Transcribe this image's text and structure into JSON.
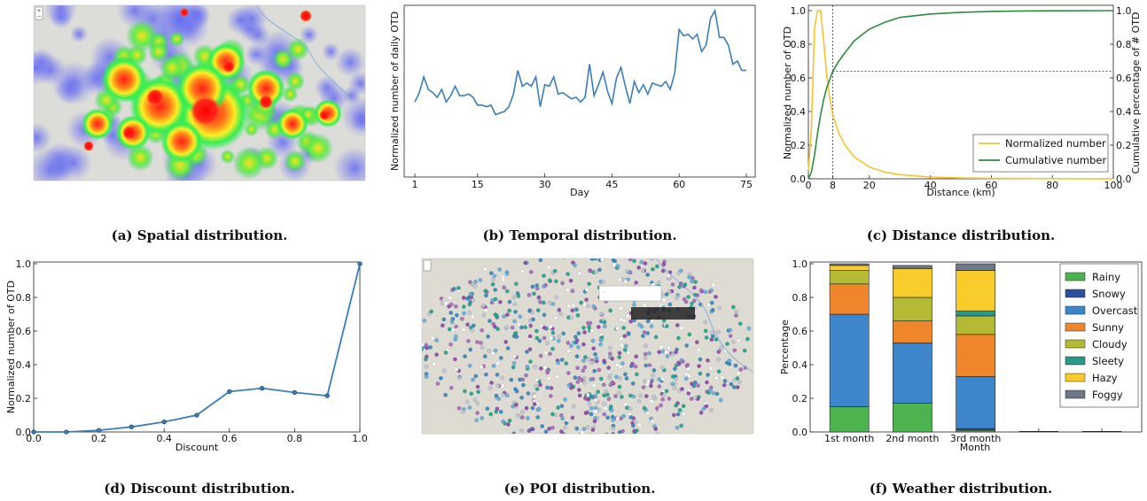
{
  "figure": {
    "captions": {
      "a": "(a) Spatial distribution.",
      "b": "(b) Temporal distribution.",
      "c": "(c) Distance distribution.",
      "d": "(d) Discount distribution.",
      "e": "(e) POI distribution.",
      "f": "(f) Weather distribution."
    }
  },
  "maps": {
    "spatial": {
      "type": "heatmap-map",
      "colors": [
        "#2233ff",
        "#22ee55",
        "#ffee22",
        "#ff2222"
      ]
    },
    "poi": {
      "type": "marker-map",
      "popup_text": "...",
      "colors": [
        "#2e86c1",
        "#17a589",
        "#8e44ad",
        "#ffffff"
      ]
    }
  },
  "chart_data": [
    {
      "id": "temporal",
      "type": "line",
      "ylabel": "Normalized number of daily OTD",
      "xlabel": "Day",
      "xlim": [
        1,
        75
      ],
      "xticks": [
        1,
        15,
        30,
        45,
        60,
        75
      ],
      "ylim": [
        0,
        1
      ],
      "color": "#3b7dbb",
      "x": [
        1,
        2,
        3,
        4,
        5,
        6,
        7,
        8,
        9,
        10,
        11,
        12,
        13,
        14,
        15,
        16,
        17,
        18,
        19,
        20,
        21,
        22,
        23,
        24,
        25,
        26,
        27,
        28,
        29,
        30,
        31,
        32,
        33,
        34,
        35,
        36,
        37,
        38,
        39,
        40,
        41,
        42,
        43,
        44,
        45,
        46,
        47,
        48,
        49,
        50,
        51,
        52,
        53,
        54,
        55,
        56,
        57,
        58,
        59,
        60,
        61,
        62,
        63,
        64,
        65,
        66,
        67,
        68,
        69,
        70,
        71,
        72,
        73,
        74,
        75
      ],
      "values": [
        0.42,
        0.48,
        0.58,
        0.5,
        0.48,
        0.45,
        0.5,
        0.42,
        0.46,
        0.52,
        0.46,
        0.46,
        0.47,
        0.45,
        0.4,
        0.4,
        0.39,
        0.4,
        0.34,
        0.35,
        0.36,
        0.39,
        0.47,
        0.62,
        0.52,
        0.54,
        0.52,
        0.58,
        0.39,
        0.53,
        0.52,
        0.58,
        0.47,
        0.48,
        0.46,
        0.44,
        0.45,
        0.42,
        0.45,
        0.66,
        0.46,
        0.53,
        0.61,
        0.49,
        0.41,
        0.57,
        0.64,
        0.52,
        0.41,
        0.55,
        0.48,
        0.53,
        0.47,
        0.54,
        0.53,
        0.52,
        0.55,
        0.5,
        0.6,
        0.88,
        0.84,
        0.85,
        0.82,
        0.85,
        0.74,
        0.78,
        0.95,
        1.0,
        0.83,
        0.83,
        0.78,
        0.66,
        0.68,
        0.62,
        0.62
      ]
    },
    {
      "id": "distance",
      "type": "line",
      "xlabel": "Distance (km)",
      "ylabel": "Normalized number of OTD",
      "ylabel_right": "Cumulative percentage of # OTD",
      "xlim": [
        0,
        100
      ],
      "xticks": [
        0,
        8,
        20,
        40,
        60,
        80,
        100
      ],
      "ylim": [
        0,
        1
      ],
      "yticks": [
        0,
        0.2,
        0.4,
        0.6,
        0.8,
        1.0
      ],
      "reference": {
        "x": 8,
        "y": 0.64
      },
      "legend_position": "lower-right",
      "series": [
        {
          "name": "Normalized number",
          "color": "#f7c22b",
          "x": [
            0,
            1,
            2,
            3,
            4,
            5,
            6,
            7,
            8,
            10,
            12,
            15,
            20,
            25,
            30,
            40,
            50,
            60,
            70,
            80,
            100
          ],
          "values": [
            0.05,
            0.3,
            0.9,
            1.0,
            1.0,
            0.82,
            0.62,
            0.48,
            0.38,
            0.27,
            0.2,
            0.13,
            0.07,
            0.04,
            0.025,
            0.01,
            0.005,
            0.003,
            0.002,
            0.001,
            0.0
          ]
        },
        {
          "name": "Cumulative number",
          "color": "#2e8b3e",
          "x": [
            0,
            1,
            2,
            3,
            4,
            5,
            6,
            7,
            8,
            10,
            12,
            15,
            20,
            25,
            30,
            40,
            50,
            60,
            70,
            80,
            100
          ],
          "values": [
            0.0,
            0.04,
            0.14,
            0.27,
            0.38,
            0.47,
            0.54,
            0.59,
            0.64,
            0.7,
            0.75,
            0.82,
            0.89,
            0.93,
            0.96,
            0.98,
            0.99,
            0.995,
            0.998,
            0.999,
            1.0
          ]
        }
      ]
    },
    {
      "id": "discount",
      "type": "line",
      "xlabel": "Discount",
      "ylabel": "Normalized number of OTD",
      "xlim": [
        0,
        1
      ],
      "xticks": [
        "0.0",
        "0.2",
        "0.4",
        "0.6",
        "0.8",
        "1.0"
      ],
      "ylim": [
        0,
        1
      ],
      "yticks": [
        "0.0",
        "0.2",
        "0.4",
        "0.6",
        "0.8",
        "1.0"
      ],
      "color": "#3b7dbb",
      "x": [
        0.0,
        0.1,
        0.2,
        0.3,
        0.4,
        0.5,
        0.6,
        0.7,
        0.8,
        0.9,
        1.0
      ],
      "values": [
        0.0,
        0.0,
        0.01,
        0.03,
        0.06,
        0.1,
        0.24,
        0.26,
        0.235,
        0.215,
        1.0
      ]
    },
    {
      "id": "weather",
      "type": "bar",
      "stacked": true,
      "ylabel": "Percentage",
      "xlabel": "Month",
      "categories": [
        "1st month",
        "2nd month",
        "3rd month",
        "",
        ""
      ],
      "ylim": [
        0,
        1
      ],
      "yticks": [
        "0.0",
        "0.2",
        "0.4",
        "0.6",
        "0.8",
        "1.0"
      ],
      "legend_position": "top-right",
      "series": [
        {
          "name": "Rainy",
          "color": "#4cb34e",
          "values": [
            0.15,
            0.17,
            0.01,
            0,
            0
          ]
        },
        {
          "name": "Snowy",
          "color": "#2a4fa1",
          "values": [
            0.0,
            0.0,
            0.01,
            0,
            0
          ]
        },
        {
          "name": "Overcast",
          "color": "#3d86cb",
          "values": [
            0.55,
            0.36,
            0.31,
            0,
            0
          ]
        },
        {
          "name": "Sunny",
          "color": "#f0862b",
          "values": [
            0.18,
            0.13,
            0.25,
            0,
            0
          ]
        },
        {
          "name": "Cloudy",
          "color": "#b5ba34",
          "values": [
            0.08,
            0.14,
            0.11,
            0,
            0
          ]
        },
        {
          "name": "Sleety",
          "color": "#2a9a88",
          "values": [
            0.0,
            0.0,
            0.03,
            0,
            0
          ]
        },
        {
          "name": "Hazy",
          "color": "#f8cc2b",
          "values": [
            0.03,
            0.17,
            0.24,
            0,
            0
          ]
        },
        {
          "name": "Foggy",
          "color": "#6d7889",
          "values": [
            0.01,
            0.02,
            0.04,
            0,
            0
          ]
        }
      ]
    }
  ]
}
